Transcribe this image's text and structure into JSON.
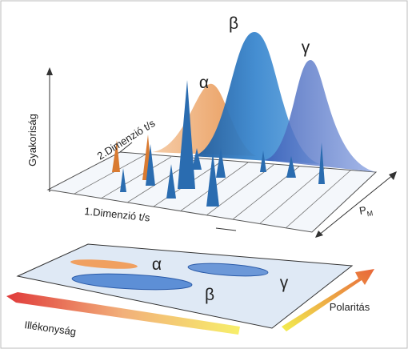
{
  "plot3d": {
    "y_axis_label": "Gyakoriság",
    "depth_axis_label": "2.Dimenzió t/s",
    "x_axis_label": "1.Dimenzió t/s",
    "right_axis_label": {
      "text": "P",
      "subscript": "M"
    },
    "peaks": [
      {
        "label": "α"
      },
      {
        "label": "β"
      },
      {
        "label": "γ"
      }
    ]
  },
  "plane2d": {
    "spots": [
      {
        "label": "α"
      },
      {
        "label": "β"
      },
      {
        "label": "γ"
      }
    ],
    "x_arrow_label": "Illékonyság",
    "y_arrow_label": "Polaritás"
  }
}
